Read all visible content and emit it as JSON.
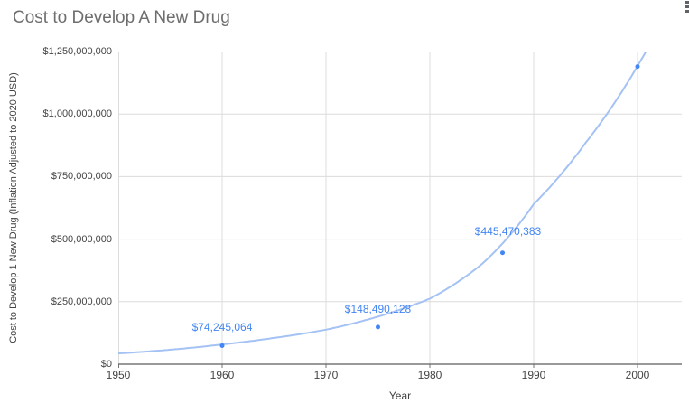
{
  "title": "Cost to Develop A New Drug",
  "icons": {
    "kebab_menu": "vertical-three-dots"
  },
  "chart_data": {
    "type": "scatter",
    "title": "Cost to Develop A New Drug",
    "xlabel": "Year",
    "ylabel": "Cost to Develop 1 New Drug (Inflation Adjusted to 2020 USD)",
    "x_ticks": [
      1950,
      1960,
      1970,
      1980,
      1990,
      2000
    ],
    "x_range": [
      1950,
      2004.3
    ],
    "y_ticks": [
      "$0",
      "$250,000,000",
      "$500,000,000",
      "$750,000,000",
      "$1,000,000,000",
      "$1,250,000,000"
    ],
    "y_tick_values": [
      0,
      250000000,
      500000000,
      750000000,
      1000000000,
      1250000000
    ],
    "ylim": [
      0,
      1250000000
    ],
    "grid": true,
    "legend": "none",
    "points": [
      {
        "x": 1960,
        "y": 74245064,
        "label": "$74,245,064",
        "label_offset": [
          0,
          -13
        ]
      },
      {
        "x": 1975,
        "y": 148490128,
        "label": "$148,490,128",
        "label_offset": [
          0,
          -13
        ]
      },
      {
        "x": 1987,
        "y": 445470383,
        "label": "$445,470,383",
        "label_offset": [
          6,
          -17
        ]
      },
      {
        "x": 2000,
        "y": 1190000000,
        "label": "",
        "label_offset": [
          0,
          -13
        ]
      }
    ],
    "trendline": {
      "type": "exponential",
      "samples": [
        [
          1950,
          43000000
        ],
        [
          1955,
          58000000
        ],
        [
          1960,
          79000000
        ],
        [
          1965,
          105000000
        ],
        [
          1970,
          138000000
        ],
        [
          1975,
          190000000
        ],
        [
          1980,
          262000000
        ],
        [
          1985,
          400000000
        ],
        [
          1990,
          640000000
        ],
        [
          1995,
          885000000
        ],
        [
          2000,
          1192000000
        ],
        [
          2002,
          1340000000
        ]
      ]
    },
    "colors": {
      "series": "#4285f4",
      "data_label": "#4285f4",
      "trendline": "#a4c2f4",
      "grid": "#dcdcdc",
      "axis_line": "#333333",
      "tick_mark": "#757575",
      "tick_label": "#444444",
      "axis_title": "#424242",
      "title": "#6e6e6e"
    }
  }
}
